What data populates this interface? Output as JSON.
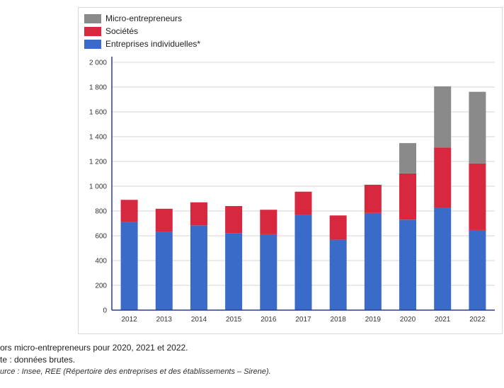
{
  "chart_data": {
    "type": "bar",
    "stacked": true,
    "categories": [
      "2012",
      "2013",
      "2014",
      "2015",
      "2016",
      "2017",
      "2018",
      "2019",
      "2020",
      "2021",
      "2022"
    ],
    "series": [
      {
        "name": "Entreprises individuelles*",
        "color": "#3b6bc9",
        "values": [
          712,
          632,
          684,
          622,
          612,
          768,
          568,
          784,
          730,
          826,
          646
        ]
      },
      {
        "name": "Sociétés",
        "color": "#d7283f",
        "values": [
          178,
          186,
          186,
          218,
          198,
          188,
          196,
          228,
          374,
          486,
          538
        ]
      },
      {
        "name": "Micro-entrepreneurs",
        "color": "#8a8a8a",
        "values": [
          0,
          0,
          0,
          0,
          0,
          0,
          0,
          0,
          244,
          494,
          578
        ]
      }
    ],
    "legend_order": [
      "Micro-entrepreneurs",
      "Sociétés",
      "Entreprises individuelles*"
    ],
    "y_ticks": [
      0,
      200,
      400,
      600,
      800,
      1000,
      1200,
      1400,
      1600,
      1800,
      2000
    ],
    "y_tick_labels": [
      "0",
      "200",
      "400",
      "600",
      "800",
      "1 000",
      "1 200",
      "1 400",
      "1 600",
      "1 800",
      "2 000"
    ],
    "ylim": [
      0,
      2000
    ],
    "grid": true,
    "legend_position": "top-left",
    "xlabel": "",
    "ylabel": ""
  },
  "notes": {
    "line1": "ors micro-entrepreneurs pour 2020, 2021 et 2022.",
    "line2": "te : données brutes.",
    "line3": "urce : Insee, REE (Répertoire des entreprises et des établissements – Sirene)."
  }
}
